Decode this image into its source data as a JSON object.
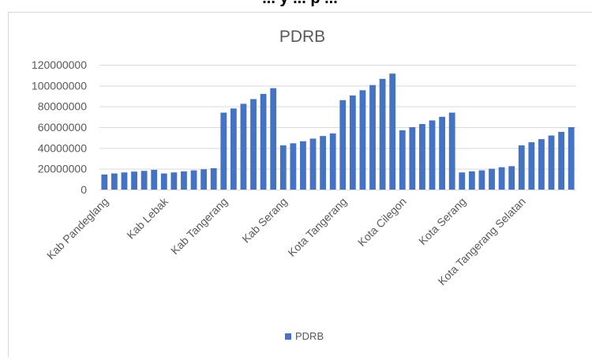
{
  "page_header_fragment": "... y ... p ...",
  "chart_data": {
    "type": "bar",
    "title": "PDRB",
    "xlabel": "",
    "ylabel": "",
    "ylim": [
      0,
      120000000
    ],
    "y_ticks": [
      "0",
      "20000000",
      "40000000",
      "60000000",
      "80000000",
      "100000000",
      "120000000"
    ],
    "gridlines": true,
    "legend": {
      "position": "bottom",
      "entries": [
        "PDRB"
      ]
    },
    "bar_color": "#4472C4",
    "groups": [
      {
        "label": "Kab Pandeglang",
        "values": [
          14500000,
          15500000,
          16500000,
          17300000,
          18000000,
          19000000
        ]
      },
      {
        "label": "Kab Lebak",
        "values": [
          15500000,
          16500000,
          17500000,
          18500000,
          19500000,
          20500000
        ]
      },
      {
        "label": "Kab Tangerang",
        "values": [
          74000000,
          78000000,
          82500000,
          87000000,
          92000000,
          97500000
        ]
      },
      {
        "label": "Kab Serang",
        "values": [
          42500000,
          44500000,
          46500000,
          49000000,
          51500000,
          54000000
        ]
      },
      {
        "label": "Kota Tangerang",
        "values": [
          86000000,
          90500000,
          95500000,
          100500000,
          106500000,
          111500000
        ]
      },
      {
        "label": "Kota Cilegon",
        "values": [
          57000000,
          60000000,
          63000000,
          66500000,
          70000000,
          74000000
        ]
      },
      {
        "label": "Kota Serang",
        "values": [
          16500000,
          17500000,
          18500000,
          20000000,
          21500000,
          22500000
        ]
      },
      {
        "label": "Kota Tangerang Selatan",
        "values": [
          42500000,
          45500000,
          48500000,
          52000000,
          55500000,
          60000000
        ]
      }
    ],
    "series": [
      {
        "name": "PDRB"
      }
    ]
  }
}
